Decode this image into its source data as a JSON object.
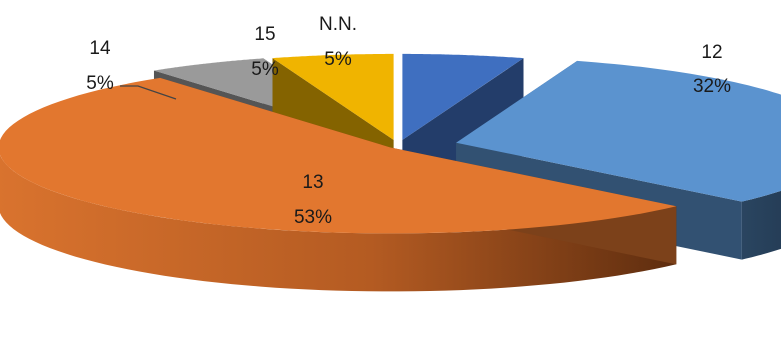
{
  "chart_data": {
    "type": "pie",
    "style": "3d-exploded",
    "legend": "none",
    "slices": [
      {
        "label": "12",
        "percent": "32%",
        "value": 32,
        "color": "#5b93cf"
      },
      {
        "label": "13",
        "percent": "53%",
        "value": 53,
        "color": "#e2772f"
      },
      {
        "label": "14",
        "percent": "5%",
        "value": 5,
        "color": "#9a9a9a"
      },
      {
        "label": "15",
        "percent": "5%",
        "value": 5,
        "color": "#f0b400"
      },
      {
        "label": "N.N.",
        "percent": "5%",
        "value": 5,
        "color": "#3f6fc0"
      }
    ]
  }
}
